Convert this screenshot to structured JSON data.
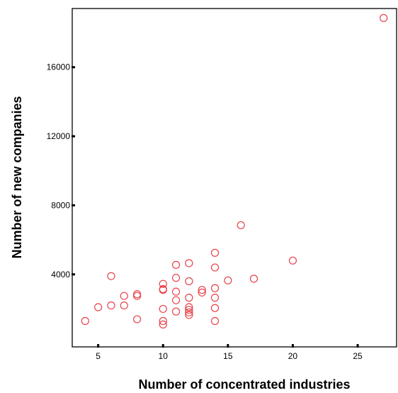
{
  "chart_data": {
    "type": "scatter",
    "title": "",
    "xlabel": "Number of concentrated industries",
    "ylabel": "Number of new companies",
    "xlim": [
      3,
      28
    ],
    "ylim": [
      -200,
      19400
    ],
    "xticks": [
      5,
      10,
      15,
      20,
      25
    ],
    "yticks": [
      4000,
      8000,
      12000,
      16000
    ],
    "grid": false,
    "legend": "none",
    "marker": "open-circle",
    "marker_color": "#e8434b",
    "points": [
      {
        "x": 4,
        "y": 1300
      },
      {
        "x": 5,
        "y": 2100
      },
      {
        "x": 6,
        "y": 2200
      },
      {
        "x": 6,
        "y": 3900
      },
      {
        "x": 7,
        "y": 2200
      },
      {
        "x": 7,
        "y": 2750
      },
      {
        "x": 8,
        "y": 1400
      },
      {
        "x": 8,
        "y": 2750
      },
      {
        "x": 8,
        "y": 2850
      },
      {
        "x": 10,
        "y": 1100
      },
      {
        "x": 10,
        "y": 1300
      },
      {
        "x": 10,
        "y": 2000
      },
      {
        "x": 10,
        "y": 3100
      },
      {
        "x": 10,
        "y": 3150
      },
      {
        "x": 10,
        "y": 3450
      },
      {
        "x": 11,
        "y": 1850
      },
      {
        "x": 11,
        "y": 2500
      },
      {
        "x": 11,
        "y": 3000
      },
      {
        "x": 11,
        "y": 3800
      },
      {
        "x": 11,
        "y": 4550
      },
      {
        "x": 12,
        "y": 1650
      },
      {
        "x": 12,
        "y": 1800
      },
      {
        "x": 12,
        "y": 1950
      },
      {
        "x": 12,
        "y": 2100
      },
      {
        "x": 12,
        "y": 2650
      },
      {
        "x": 12,
        "y": 3600
      },
      {
        "x": 12,
        "y": 4650
      },
      {
        "x": 13,
        "y": 2950
      },
      {
        "x": 13,
        "y": 3100
      },
      {
        "x": 14,
        "y": 1300
      },
      {
        "x": 14,
        "y": 2050
      },
      {
        "x": 14,
        "y": 2650
      },
      {
        "x": 14,
        "y": 3200
      },
      {
        "x": 14,
        "y": 4400
      },
      {
        "x": 14,
        "y": 5250
      },
      {
        "x": 15,
        "y": 3650
      },
      {
        "x": 16,
        "y": 6850
      },
      {
        "x": 17,
        "y": 3750
      },
      {
        "x": 20,
        "y": 4800
      },
      {
        "x": 27,
        "y": 18850
      }
    ]
  }
}
